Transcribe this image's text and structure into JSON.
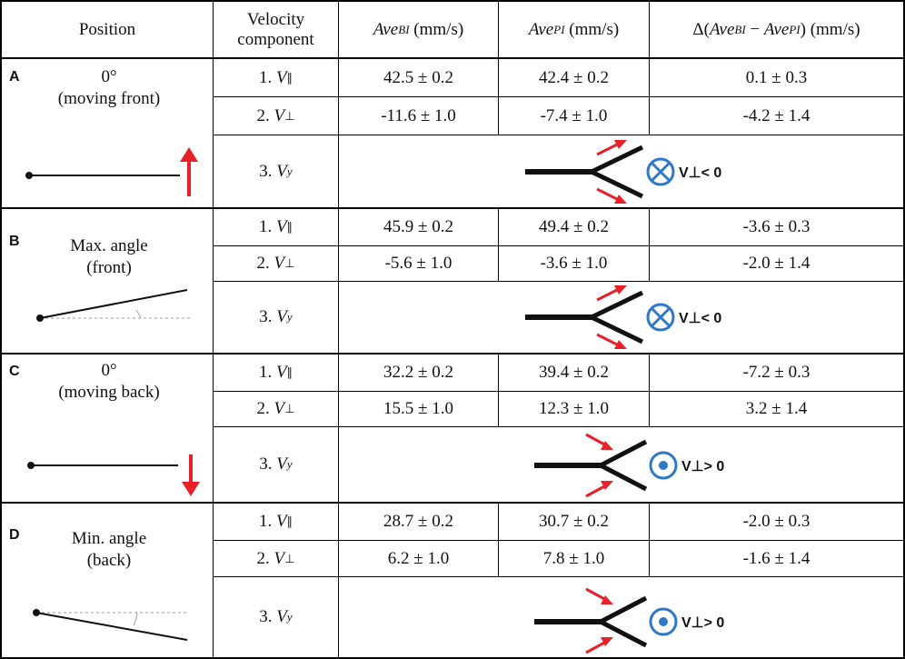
{
  "header": {
    "position": "Position",
    "velocity_line1": "Velocity",
    "velocity_line2": "component",
    "ave_bi_base": "Ave",
    "ave_bi_sub": "BI",
    "ave_pi_base": "Ave",
    "ave_pi_sub": "PI",
    "unit": "(mm/s)",
    "delta_prefix": "Δ(",
    "delta_minus": " − ",
    "delta_suffix": ")"
  },
  "components": {
    "c1_num": "1.",
    "c1_sym": "V",
    "c1_sub": "∥",
    "c2_num": "2.",
    "c2_sym": "V",
    "c2_sub": "⊥",
    "c3_num": "3.",
    "c3_sym": "V",
    "c3_sub": "y"
  },
  "panels": [
    {
      "letter": "A",
      "title": "0°",
      "subtitle": "(moving front)",
      "v_par": {
        "bi": "42.5 ± 0.2",
        "pi": "42.4 ± 0.2",
        "delta": "0.1 ± 0.3"
      },
      "v_perp": {
        "bi": "-11.6 ± 1.0",
        "pi": "-7.4 ± 1.0",
        "delta": "-4.2 ± 1.4"
      },
      "vy_label": "V⊥< 0"
    },
    {
      "letter": "B",
      "title": "Max. angle",
      "subtitle": "(front)",
      "v_par": {
        "bi": "45.9 ± 0.2",
        "pi": "49.4 ± 0.2",
        "delta": "-3.6 ± 0.3"
      },
      "v_perp": {
        "bi": "-5.6 ± 1.0",
        "pi": "-3.6 ± 1.0",
        "delta": "-2.0 ± 1.4"
      },
      "vy_label": "V⊥< 0"
    },
    {
      "letter": "C",
      "title": "0°",
      "subtitle": "(moving back)",
      "v_par": {
        "bi": "32.2 ± 0.2",
        "pi": "39.4 ± 0.2",
        "delta": "-7.2 ± 0.3"
      },
      "v_perp": {
        "bi": "15.5 ± 1.0",
        "pi": "12.3 ± 1.0",
        "delta": "3.2 ± 1.4"
      },
      "vy_label": "V⊥> 0"
    },
    {
      "letter": "D",
      "title": "Min. angle",
      "subtitle": "(back)",
      "v_par": {
        "bi": "28.7 ± 0.2",
        "pi": "30.7 ± 0.2",
        "delta": "-2.0 ± 0.3"
      },
      "v_perp": {
        "bi": "6.2 ± 1.0",
        "pi": "7.8 ± 1.0",
        "delta": "-1.6 ± 1.4"
      },
      "vy_label": "V⊥> 0"
    }
  ],
  "colors": {
    "arrow": "#e8202a",
    "symbol": "#2e78c7",
    "line": "#111111",
    "guide": "#9a9a9a"
  }
}
